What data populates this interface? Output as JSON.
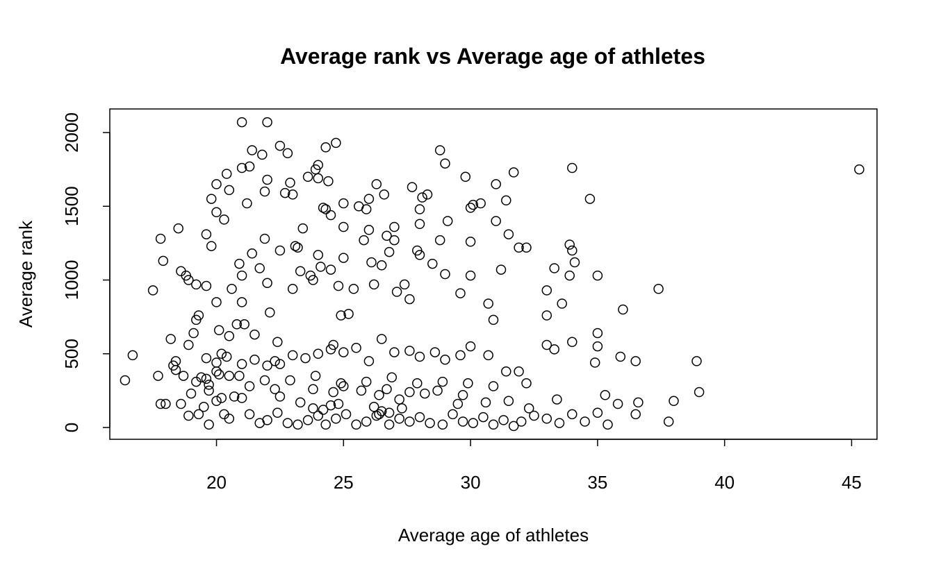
{
  "chart_data": {
    "type": "scatter",
    "title": "Average rank vs Average age of athletes",
    "xlabel": "Average age of athletes",
    "ylabel": "Average rank",
    "xlim": [
      15.8,
      46.0
    ],
    "ylim": [
      -80,
      2160
    ],
    "x_ticks": [
      20,
      25,
      30,
      35,
      40,
      45
    ],
    "y_ticks": [
      0,
      500,
      1000,
      1500,
      2000
    ],
    "grid": false,
    "legend": "none",
    "points": [
      [
        16.4,
        320
      ],
      [
        16.7,
        490
      ],
      [
        17.5,
        930
      ],
      [
        17.7,
        350
      ],
      [
        17.8,
        1280
      ],
      [
        17.8,
        160
      ],
      [
        17.9,
        1130
      ],
      [
        18.0,
        160
      ],
      [
        18.2,
        600
      ],
      [
        18.3,
        420
      ],
      [
        18.4,
        390
      ],
      [
        18.4,
        450
      ],
      [
        18.5,
        1350
      ],
      [
        18.6,
        1060
      ],
      [
        18.6,
        160
      ],
      [
        18.8,
        1030
      ],
      [
        18.9,
        1000
      ],
      [
        18.9,
        560
      ],
      [
        19.0,
        230
      ],
      [
        19.1,
        640
      ],
      [
        19.2,
        970
      ],
      [
        19.2,
        730
      ],
      [
        19.3,
        760
      ],
      [
        19.4,
        340
      ],
      [
        19.6,
        1310
      ],
      [
        19.6,
        960
      ],
      [
        19.6,
        470
      ],
      [
        19.7,
        290
      ],
      [
        19.7,
        250
      ],
      [
        19.8,
        1550
      ],
      [
        19.8,
        1230
      ],
      [
        20.0,
        1650
      ],
      [
        20.0,
        1460
      ],
      [
        20.0,
        850
      ],
      [
        20.0,
        440
      ],
      [
        20.1,
        360
      ],
      [
        20.1,
        660
      ],
      [
        20.2,
        500
      ],
      [
        20.2,
        200
      ],
      [
        20.3,
        1410
      ],
      [
        20.4,
        1720
      ],
      [
        20.5,
        1610
      ],
      [
        20.5,
        620
      ],
      [
        20.5,
        350
      ],
      [
        20.6,
        940
      ],
      [
        20.7,
        210
      ],
      [
        20.8,
        700
      ],
      [
        20.9,
        1110
      ],
      [
        21.0,
        2070
      ],
      [
        21.0,
        1760
      ],
      [
        21.0,
        1030
      ],
      [
        21.0,
        850
      ],
      [
        21.1,
        700
      ],
      [
        21.2,
        1520
      ],
      [
        21.3,
        1770
      ],
      [
        21.4,
        1880
      ],
      [
        21.4,
        1180
      ],
      [
        21.5,
        630
      ],
      [
        21.7,
        1080
      ],
      [
        21.8,
        1850
      ],
      [
        21.9,
        1600
      ],
      [
        21.9,
        1280
      ],
      [
        22.0,
        2070
      ],
      [
        22.0,
        1680
      ],
      [
        22.0,
        980
      ],
      [
        22.1,
        780
      ],
      [
        22.3,
        450
      ],
      [
        22.4,
        580
      ],
      [
        22.5,
        1910
      ],
      [
        22.5,
        1200
      ],
      [
        22.7,
        1590
      ],
      [
        22.8,
        1860
      ],
      [
        22.9,
        1660
      ],
      [
        23.0,
        1580
      ],
      [
        23.0,
        940
      ],
      [
        23.1,
        1230
      ],
      [
        23.2,
        1220
      ],
      [
        23.3,
        1060
      ],
      [
        23.4,
        1350
      ],
      [
        23.6,
        1700
      ],
      [
        23.7,
        1030
      ],
      [
        23.8,
        1000
      ],
      [
        23.9,
        1750
      ],
      [
        24.0,
        1780
      ],
      [
        24.0,
        1690
      ],
      [
        24.0,
        1170
      ],
      [
        24.1,
        1090
      ],
      [
        24.2,
        1490
      ],
      [
        24.3,
        1900
      ],
      [
        24.3,
        1480
      ],
      [
        24.4,
        1670
      ],
      [
        24.5,
        1440
      ],
      [
        24.5,
        1070
      ],
      [
        24.6,
        560
      ],
      [
        24.7,
        1930
      ],
      [
        24.8,
        960
      ],
      [
        24.9,
        760
      ],
      [
        25.0,
        1520
      ],
      [
        25.0,
        1360
      ],
      [
        25.0,
        1150
      ],
      [
        25.2,
        770
      ],
      [
        25.4,
        940
      ],
      [
        25.6,
        1500
      ],
      [
        25.8,
        1270
      ],
      [
        25.9,
        1480
      ],
      [
        26.0,
        1550
      ],
      [
        26.0,
        1340
      ],
      [
        26.1,
        1120
      ],
      [
        26.2,
        970
      ],
      [
        26.3,
        1650
      ],
      [
        26.5,
        1100
      ],
      [
        26.6,
        1580
      ],
      [
        26.7,
        1300
      ],
      [
        26.8,
        1190
      ],
      [
        27.0,
        1360
      ],
      [
        27.0,
        1270
      ],
      [
        27.1,
        920
      ],
      [
        27.4,
        970
      ],
      [
        27.6,
        870
      ],
      [
        27.7,
        1630
      ],
      [
        27.9,
        1200
      ],
      [
        28.0,
        1480
      ],
      [
        28.0,
        1380
      ],
      [
        28.0,
        1170
      ],
      [
        28.1,
        1560
      ],
      [
        28.3,
        1580
      ],
      [
        28.5,
        1110
      ],
      [
        28.8,
        1880
      ],
      [
        28.8,
        1270
      ],
      [
        29.0,
        1790
      ],
      [
        29.1,
        1400
      ],
      [
        29.0,
        1040
      ],
      [
        29.6,
        910
      ],
      [
        29.8,
        1700
      ],
      [
        30.0,
        1490
      ],
      [
        30.0,
        1260
      ],
      [
        30.0,
        1030
      ],
      [
        30.1,
        1510
      ],
      [
        30.4,
        1520
      ],
      [
        30.7,
        840
      ],
      [
        30.9,
        730
      ],
      [
        31.0,
        1650
      ],
      [
        31.0,
        1400
      ],
      [
        31.2,
        1070
      ],
      [
        31.4,
        1540
      ],
      [
        31.5,
        1310
      ],
      [
        31.7,
        1730
      ],
      [
        31.9,
        1220
      ],
      [
        32.2,
        1220
      ],
      [
        33.0,
        930
      ],
      [
        33.0,
        760
      ],
      [
        33.3,
        1080
      ],
      [
        33.6,
        840
      ],
      [
        33.9,
        1240
      ],
      [
        33.9,
        1030
      ],
      [
        34.0,
        1760
      ],
      [
        34.0,
        1200
      ],
      [
        34.1,
        1120
      ],
      [
        34.7,
        1550
      ],
      [
        35.0,
        1030
      ],
      [
        35.0,
        640
      ],
      [
        37.4,
        940
      ],
      [
        36.0,
        800
      ],
      [
        45.3,
        1750
      ],
      [
        20.3,
        90
      ],
      [
        20.5,
        60
      ],
      [
        21.0,
        200
      ],
      [
        21.3,
        90
      ],
      [
        21.7,
        30
      ],
      [
        22.0,
        50
      ],
      [
        22.4,
        100
      ],
      [
        22.8,
        30
      ],
      [
        23.2,
        20
      ],
      [
        23.6,
        50
      ],
      [
        24.0,
        80
      ],
      [
        24.3,
        20
      ],
      [
        24.7,
        60
      ],
      [
        25.1,
        90
      ],
      [
        25.5,
        20
      ],
      [
        25.9,
        40
      ],
      [
        26.3,
        80
      ],
      [
        26.8,
        20
      ],
      [
        27.2,
        60
      ],
      [
        27.6,
        40
      ],
      [
        28.0,
        70
      ],
      [
        28.4,
        30
      ],
      [
        28.9,
        20
      ],
      [
        29.3,
        90
      ],
      [
        29.7,
        40
      ],
      [
        30.1,
        30
      ],
      [
        30.5,
        70
      ],
      [
        30.9,
        20
      ],
      [
        31.3,
        50
      ],
      [
        31.7,
        10
      ],
      [
        32.0,
        40
      ],
      [
        32.5,
        80
      ],
      [
        33.0,
        60
      ],
      [
        33.5,
        30
      ],
      [
        34.0,
        90
      ],
      [
        34.5,
        40
      ],
      [
        35.0,
        100
      ],
      [
        35.4,
        20
      ],
      [
        19.7,
        20
      ],
      [
        19.3,
        90
      ],
      [
        18.9,
        80
      ],
      [
        19.5,
        140
      ],
      [
        20.0,
        180
      ],
      [
        21.3,
        280
      ],
      [
        22.5,
        210
      ],
      [
        23.3,
        170
      ],
      [
        24.2,
        120
      ],
      [
        25.0,
        280
      ],
      [
        26.4,
        220
      ],
      [
        27.2,
        190
      ],
      [
        28.2,
        230
      ],
      [
        29.5,
        160
      ],
      [
        30.6,
        170
      ],
      [
        31.5,
        180
      ],
      [
        32.3,
        130
      ],
      [
        33.4,
        190
      ],
      [
        35.3,
        220
      ],
      [
        35.8,
        160
      ],
      [
        36.5,
        90
      ],
      [
        36.6,
        170
      ],
      [
        37.8,
        40
      ],
      [
        38.0,
        180
      ],
      [
        39.0,
        240
      ],
      [
        38.9,
        450
      ],
      [
        36.5,
        450
      ],
      [
        35.9,
        480
      ],
      [
        35.0,
        550
      ],
      [
        34.9,
        440
      ],
      [
        34.0,
        580
      ],
      [
        33.3,
        530
      ],
      [
        33.0,
        560
      ],
      [
        32.2,
        300
      ],
      [
        31.9,
        380
      ],
      [
        31.4,
        380
      ],
      [
        30.7,
        490
      ],
      [
        30.0,
        550
      ],
      [
        29.6,
        490
      ],
      [
        29.0,
        460
      ],
      [
        28.6,
        510
      ],
      [
        28.0,
        480
      ],
      [
        27.6,
        520
      ],
      [
        27.0,
        510
      ],
      [
        26.5,
        600
      ],
      [
        26.0,
        450
      ],
      [
        25.5,
        540
      ],
      [
        25.0,
        510
      ],
      [
        24.5,
        530
      ],
      [
        24.0,
        500
      ],
      [
        23.5,
        470
      ],
      [
        23.0,
        490
      ],
      [
        22.5,
        430
      ],
      [
        22.0,
        420
      ],
      [
        21.5,
        460
      ],
      [
        21.0,
        430
      ],
      [
        20.4,
        480
      ],
      [
        20.0,
        380
      ],
      [
        19.6,
        330
      ],
      [
        19.2,
        310
      ],
      [
        18.7,
        350
      ],
      [
        20.9,
        350
      ],
      [
        21.9,
        320
      ],
      [
        22.9,
        320
      ],
      [
        23.9,
        350
      ],
      [
        24.9,
        300
      ],
      [
        25.9,
        310
      ],
      [
        26.9,
        340
      ],
      [
        27.9,
        300
      ],
      [
        28.9,
        310
      ],
      [
        29.9,
        300
      ],
      [
        30.9,
        280
      ],
      [
        22.3,
        260
      ],
      [
        23.8,
        260
      ],
      [
        24.6,
        240
      ],
      [
        25.7,
        250
      ],
      [
        26.7,
        260
      ],
      [
        27.6,
        240
      ],
      [
        28.7,
        250
      ],
      [
        29.7,
        220
      ],
      [
        26.2,
        140
      ],
      [
        26.5,
        110
      ],
      [
        26.8,
        100
      ],
      [
        26.4,
        90
      ],
      [
        27.3,
        130
      ],
      [
        24.8,
        160
      ],
      [
        24.5,
        150
      ],
      [
        23.8,
        130
      ]
    ]
  }
}
